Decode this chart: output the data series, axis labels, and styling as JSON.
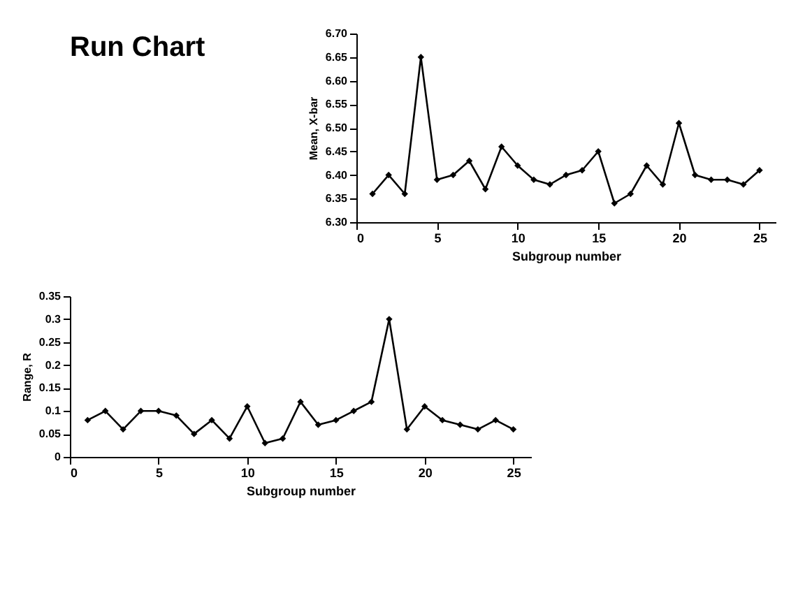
{
  "chart_data": [
    {
      "type": "line",
      "title": "Run Chart",
      "xlabel": "Subgroup number",
      "ylabel": "Mean, X-bar",
      "x": [
        1,
        2,
        3,
        4,
        5,
        6,
        7,
        8,
        9,
        10,
        11,
        12,
        13,
        14,
        15,
        16,
        17,
        18,
        19,
        20,
        21,
        22,
        23,
        24,
        25
      ],
      "series": [
        {
          "color": "#000000",
          "values": [
            6.36,
            6.4,
            6.36,
            6.65,
            6.39,
            6.4,
            6.43,
            6.37,
            6.46,
            6.42,
            6.39,
            6.38,
            6.4,
            6.41,
            6.45,
            6.34,
            6.36,
            6.42,
            6.38,
            6.51,
            6.4,
            6.39,
            6.39,
            6.38,
            6.41
          ]
        }
      ],
      "xlim": [
        0,
        26
      ],
      "xticks": [
        0,
        5,
        10,
        15,
        20,
        25
      ],
      "ylim": [
        6.3,
        6.7
      ],
      "yticks": [
        {
          "value": 6.3,
          "label": "6.30"
        },
        {
          "value": 6.35,
          "label": "6.35"
        },
        {
          "value": 6.4,
          "label": "6.40"
        },
        {
          "value": 6.45,
          "label": "6.45"
        },
        {
          "value": 6.5,
          "label": "6.50"
        },
        {
          "value": 6.55,
          "label": "6.55"
        },
        {
          "value": 6.6,
          "label": "6.60"
        },
        {
          "value": 6.65,
          "label": "6.65"
        },
        {
          "value": 6.7,
          "label": "6.70"
        }
      ],
      "grid": false,
      "marker": "diamond",
      "line_style": "solid"
    },
    {
      "type": "line",
      "xlabel": "Subgroup number",
      "ylabel": "Range, R",
      "x": [
        1,
        2,
        3,
        4,
        5,
        6,
        7,
        8,
        9,
        10,
        11,
        12,
        13,
        14,
        15,
        16,
        17,
        18,
        19,
        20,
        21,
        22,
        23,
        24,
        25
      ],
      "series": [
        {
          "color": "#000000",
          "values": [
            0.08,
            0.1,
            0.06,
            0.1,
            0.1,
            0.09,
            0.05,
            0.08,
            0.04,
            0.11,
            0.03,
            0.04,
            0.12,
            0.07,
            0.08,
            0.1,
            0.12,
            0.3,
            0.06,
            0.11,
            0.08,
            0.07,
            0.06,
            0.08,
            0.06
          ]
        }
      ],
      "xlim": [
        0,
        26
      ],
      "xticks": [
        0,
        5,
        10,
        15,
        20,
        25
      ],
      "ylim": [
        0,
        0.35
      ],
      "yticks": [
        0,
        0.05,
        0.1,
        0.15,
        0.2,
        0.25,
        0.3,
        0.35
      ],
      "grid": false,
      "marker": "diamond",
      "line_style": "solid"
    }
  ]
}
